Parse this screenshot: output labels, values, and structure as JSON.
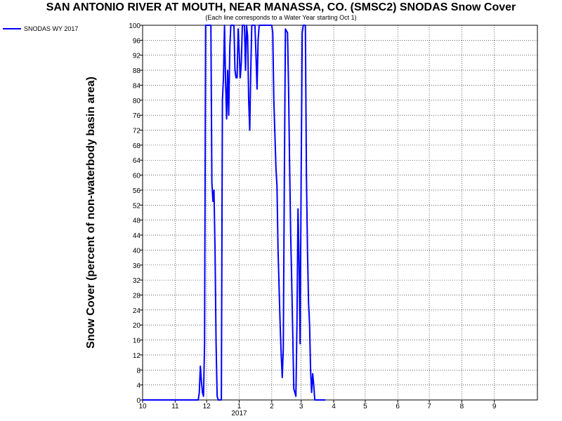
{
  "chart_data": {
    "type": "line",
    "title": "SAN ANTONIO RIVER AT MOUTH, NEAR MANASSA, CO. (SMSC2) SNODAS Snow Cover",
    "subtitle": "(Each line corresponds to a Water Year starting Oct 1)",
    "ylabel": "Snow Cover (percent of non-waterbody basin area)",
    "xlabel": "",
    "x_tick_labels": [
      "10",
      "11",
      "12",
      "1",
      "2",
      "3",
      "4",
      "5",
      "6",
      "7",
      "8",
      "9"
    ],
    "x_year_label": "2017",
    "y_ticks": [
      0,
      4,
      8,
      12,
      16,
      20,
      24,
      28,
      32,
      36,
      40,
      44,
      48,
      52,
      56,
      60,
      64,
      68,
      72,
      76,
      80,
      84,
      88,
      92,
      96,
      100
    ],
    "ylim": [
      0,
      100
    ],
    "xlim": [
      "2016-10-01",
      "2017-10-12"
    ],
    "grid": true,
    "legend_position": "top-left",
    "colors": {
      "series": "#0000ff",
      "grid": "#000000",
      "axis": "#000000"
    },
    "series": [
      {
        "name": "SNODAS WY 2017",
        "points": [
          [
            "2016-10-01",
            0
          ],
          [
            "2016-11-23",
            0
          ],
          [
            "2016-11-24",
            2
          ],
          [
            "2016-11-25",
            9
          ],
          [
            "2016-11-26",
            5
          ],
          [
            "2016-11-27",
            2
          ],
          [
            "2016-11-28",
            1
          ],
          [
            "2016-11-29",
            15
          ],
          [
            "2016-11-30",
            100
          ],
          [
            "2016-12-05",
            100
          ],
          [
            "2016-12-06",
            58
          ],
          [
            "2016-12-07",
            53
          ],
          [
            "2016-12-08",
            56
          ],
          [
            "2016-12-09",
            40
          ],
          [
            "2016-12-10",
            15
          ],
          [
            "2016-12-11",
            1
          ],
          [
            "2016-12-12",
            0
          ],
          [
            "2016-12-13",
            0
          ],
          [
            "2016-12-15",
            0
          ],
          [
            "2016-12-16",
            80
          ],
          [
            "2016-12-17",
            86
          ],
          [
            "2016-12-18",
            100
          ],
          [
            "2016-12-19",
            85
          ],
          [
            "2016-12-20",
            75
          ],
          [
            "2016-12-21",
            88
          ],
          [
            "2016-12-22",
            76
          ],
          [
            "2016-12-23",
            94
          ],
          [
            "2016-12-24",
            100
          ],
          [
            "2016-12-27",
            100
          ],
          [
            "2016-12-28",
            88
          ],
          [
            "2016-12-29",
            86
          ],
          [
            "2016-12-30",
            86
          ],
          [
            "2016-12-31",
            99
          ],
          [
            "2017-01-01",
            93
          ],
          [
            "2017-01-02",
            86
          ],
          [
            "2017-01-03",
            90
          ],
          [
            "2017-01-04",
            100
          ],
          [
            "2017-01-06",
            100
          ],
          [
            "2017-01-07",
            88
          ],
          [
            "2017-01-08",
            100
          ],
          [
            "2017-01-09",
            97
          ],
          [
            "2017-01-10",
            80
          ],
          [
            "2017-01-11",
            72
          ],
          [
            "2017-01-12",
            88
          ],
          [
            "2017-01-13",
            100
          ],
          [
            "2017-01-16",
            100
          ],
          [
            "2017-01-17",
            92
          ],
          [
            "2017-01-18",
            83
          ],
          [
            "2017-01-19",
            96
          ],
          [
            "2017-01-20",
            100
          ],
          [
            "2017-02-01",
            100
          ],
          [
            "2017-02-02",
            98
          ],
          [
            "2017-02-03",
            80
          ],
          [
            "2017-02-05",
            62
          ],
          [
            "2017-02-06",
            57
          ],
          [
            "2017-02-07",
            40
          ],
          [
            "2017-02-08",
            30
          ],
          [
            "2017-02-09",
            20
          ],
          [
            "2017-02-10",
            12
          ],
          [
            "2017-02-11",
            6
          ],
          [
            "2017-02-12",
            14
          ],
          [
            "2017-02-13",
            60
          ],
          [
            "2017-02-14",
            99
          ],
          [
            "2017-02-16",
            98
          ],
          [
            "2017-02-17",
            83
          ],
          [
            "2017-02-18",
            62
          ],
          [
            "2017-02-19",
            44
          ],
          [
            "2017-02-20",
            32
          ],
          [
            "2017-02-21",
            18
          ],
          [
            "2017-02-22",
            3
          ],
          [
            "2017-02-23",
            2
          ],
          [
            "2017-02-24",
            1
          ],
          [
            "2017-02-25",
            20
          ],
          [
            "2017-02-26",
            51
          ],
          [
            "2017-02-27",
            37
          ],
          [
            "2017-02-28",
            15
          ],
          [
            "2017-03-01",
            60
          ],
          [
            "2017-03-02",
            98
          ],
          [
            "2017-03-03",
            100
          ],
          [
            "2017-03-05",
            100
          ],
          [
            "2017-03-06",
            60
          ],
          [
            "2017-03-07",
            40
          ],
          [
            "2017-03-08",
            26
          ],
          [
            "2017-03-09",
            20
          ],
          [
            "2017-03-10",
            8
          ],
          [
            "2017-03-11",
            2
          ],
          [
            "2017-03-12",
            7
          ],
          [
            "2017-03-13",
            4
          ],
          [
            "2017-03-14",
            0
          ],
          [
            "2017-03-24",
            0
          ]
        ]
      }
    ]
  }
}
